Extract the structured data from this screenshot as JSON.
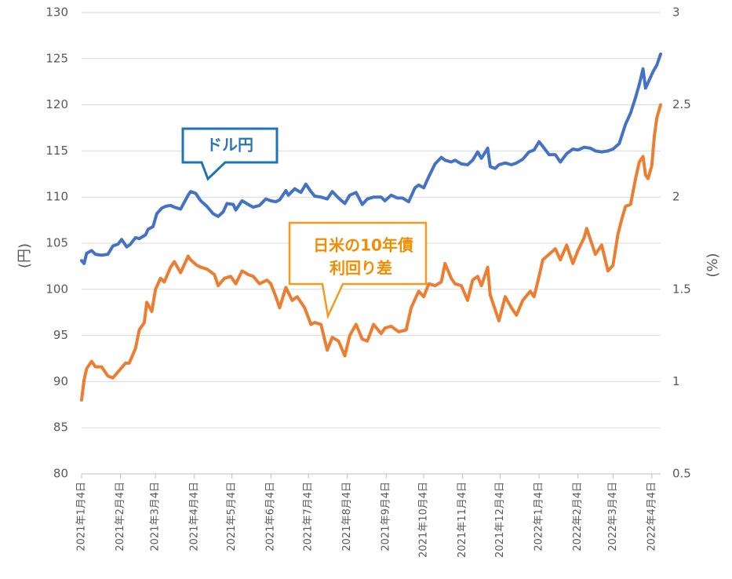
{
  "chart_data": {
    "type": "line",
    "y_left": {
      "label": "(円)",
      "min": 80,
      "max": 130,
      "ticks": [
        80,
        85,
        90,
        95,
        100,
        105,
        110,
        115,
        120,
        125,
        130
      ]
    },
    "y_right": {
      "label": "(%)",
      "min": 0.5,
      "max": 3,
      "ticks": [
        "0.5",
        "1",
        "1.5",
        "2",
        "2.5",
        "3"
      ]
    },
    "x_start": "2021-01-04",
    "x_end": "2022-04-11",
    "x_ticks": [
      {
        "date": "2021-01-04",
        "label": "2021年1月4日"
      },
      {
        "date": "2021-02-04",
        "label": "2021年2月4日"
      },
      {
        "date": "2021-03-04",
        "label": "2021年3月4日"
      },
      {
        "date": "2021-04-04",
        "label": "2021年4月4日"
      },
      {
        "date": "2021-05-04",
        "label": "2021年5月4日"
      },
      {
        "date": "2021-06-04",
        "label": "2021年6月4日"
      },
      {
        "date": "2021-07-04",
        "label": "2021年7月4日"
      },
      {
        "date": "2021-08-04",
        "label": "2021年8月4日"
      },
      {
        "date": "2021-09-04",
        "label": "2021年9月4日"
      },
      {
        "date": "2021-10-04",
        "label": "2021年10月4日"
      },
      {
        "date": "2021-11-04",
        "label": "2021年11月4日"
      },
      {
        "date": "2021-12-04",
        "label": "2021年12月4日"
      },
      {
        "date": "2022-01-04",
        "label": "2022年1月4日"
      },
      {
        "date": "2022-02-04",
        "label": "2022年2月4日"
      },
      {
        "date": "2022-03-04",
        "label": "2022年3月4日"
      },
      {
        "date": "2022-04-04",
        "label": "2022年4月4日"
      }
    ],
    "grid": true,
    "series": [
      {
        "name": "ドル円",
        "axis": "left",
        "color": "#4472C4",
        "points": [
          [
            "2021-01-04",
            103.1
          ],
          [
            "2021-01-06",
            102.8
          ],
          [
            "2021-01-08",
            103.9
          ],
          [
            "2021-01-12",
            104.2
          ],
          [
            "2021-01-15",
            103.8
          ],
          [
            "2021-01-20",
            103.7
          ],
          [
            "2021-01-25",
            103.8
          ],
          [
            "2021-01-29",
            104.7
          ],
          [
            "2021-02-02",
            104.9
          ],
          [
            "2021-02-05",
            105.4
          ],
          [
            "2021-02-09",
            104.6
          ],
          [
            "2021-02-12",
            104.9
          ],
          [
            "2021-02-16",
            105.6
          ],
          [
            "2021-02-19",
            105.5
          ],
          [
            "2021-02-24",
            105.9
          ],
          [
            "2021-02-26",
            106.5
          ],
          [
            "2021-03-02",
            106.8
          ],
          [
            "2021-03-05",
            108.2
          ],
          [
            "2021-03-09",
            108.8
          ],
          [
            "2021-03-12",
            109.0
          ],
          [
            "2021-03-16",
            109.1
          ],
          [
            "2021-03-19",
            108.9
          ],
          [
            "2021-03-24",
            108.7
          ],
          [
            "2021-03-30",
            110.2
          ],
          [
            "2021-04-01",
            110.6
          ],
          [
            "2021-04-05",
            110.4
          ],
          [
            "2021-04-09",
            109.6
          ],
          [
            "2021-04-14",
            109.0
          ],
          [
            "2021-04-19",
            108.2
          ],
          [
            "2021-04-23",
            107.9
          ],
          [
            "2021-04-27",
            108.4
          ],
          [
            "2021-04-30",
            109.3
          ],
          [
            "2021-05-05",
            109.2
          ],
          [
            "2021-05-07",
            108.6
          ],
          [
            "2021-05-12",
            109.6
          ],
          [
            "2021-05-17",
            109.2
          ],
          [
            "2021-05-21",
            108.9
          ],
          [
            "2021-05-26",
            109.1
          ],
          [
            "2021-05-31",
            109.8
          ],
          [
            "2021-06-04",
            109.6
          ],
          [
            "2021-06-08",
            109.5
          ],
          [
            "2021-06-11",
            109.7
          ],
          [
            "2021-06-16",
            110.7
          ],
          [
            "2021-06-18",
            110.2
          ],
          [
            "2021-06-23",
            110.9
          ],
          [
            "2021-06-28",
            110.5
          ],
          [
            "2021-07-02",
            111.4
          ],
          [
            "2021-07-06",
            110.6
          ],
          [
            "2021-07-09",
            110.1
          ],
          [
            "2021-07-14",
            110.0
          ],
          [
            "2021-07-19",
            109.8
          ],
          [
            "2021-07-23",
            110.6
          ],
          [
            "2021-07-28",
            109.9
          ],
          [
            "2021-08-02",
            109.3
          ],
          [
            "2021-08-06",
            110.2
          ],
          [
            "2021-08-11",
            110.5
          ],
          [
            "2021-08-16",
            109.2
          ],
          [
            "2021-08-20",
            109.8
          ],
          [
            "2021-08-25",
            110.0
          ],
          [
            "2021-08-31",
            110.0
          ],
          [
            "2021-09-03",
            109.6
          ],
          [
            "2021-09-08",
            110.2
          ],
          [
            "2021-09-13",
            109.9
          ],
          [
            "2021-09-17",
            109.9
          ],
          [
            "2021-09-22",
            109.5
          ],
          [
            "2021-09-27",
            111.0
          ],
          [
            "2021-09-30",
            111.3
          ],
          [
            "2021-10-04",
            111.0
          ],
          [
            "2021-10-08",
            112.2
          ],
          [
            "2021-10-13",
            113.6
          ],
          [
            "2021-10-18",
            114.3
          ],
          [
            "2021-10-21",
            114.0
          ],
          [
            "2021-10-26",
            113.8
          ],
          [
            "2021-10-29",
            114.0
          ],
          [
            "2021-11-03",
            113.6
          ],
          [
            "2021-11-08",
            113.5
          ],
          [
            "2021-11-12",
            114.0
          ],
          [
            "2021-11-16",
            114.9
          ],
          [
            "2021-11-19",
            114.2
          ],
          [
            "2021-11-24",
            115.3
          ],
          [
            "2021-11-26",
            113.3
          ],
          [
            "2021-11-30",
            113.1
          ],
          [
            "2021-12-03",
            113.5
          ],
          [
            "2021-12-08",
            113.7
          ],
          [
            "2021-12-13",
            113.5
          ],
          [
            "2021-12-17",
            113.7
          ],
          [
            "2021-12-22",
            114.1
          ],
          [
            "2021-12-27",
            114.9
          ],
          [
            "2021-12-31",
            115.1
          ],
          [
            "2022-01-04",
            116.0
          ],
          [
            "2022-01-07",
            115.5
          ],
          [
            "2022-01-12",
            114.6
          ],
          [
            "2022-01-17",
            114.6
          ],
          [
            "2022-01-21",
            113.8
          ],
          [
            "2022-01-26",
            114.7
          ],
          [
            "2022-01-31",
            115.2
          ],
          [
            "2022-02-04",
            115.1
          ],
          [
            "2022-02-09",
            115.4
          ],
          [
            "2022-02-14",
            115.3
          ],
          [
            "2022-02-18",
            115.0
          ],
          [
            "2022-02-23",
            114.9
          ],
          [
            "2022-02-28",
            115.0
          ],
          [
            "2022-03-04",
            115.2
          ],
          [
            "2022-03-09",
            115.8
          ],
          [
            "2022-03-14",
            117.9
          ],
          [
            "2022-03-18",
            119.1
          ],
          [
            "2022-03-22",
            120.8
          ],
          [
            "2022-03-25",
            122.2
          ],
          [
            "2022-03-28",
            123.9
          ],
          [
            "2022-03-30",
            121.8
          ],
          [
            "2022-04-01",
            122.4
          ],
          [
            "2022-04-05",
            123.6
          ],
          [
            "2022-04-08",
            124.3
          ],
          [
            "2022-04-11",
            125.5
          ]
        ]
      },
      {
        "name": "日米の10年債利回り差",
        "axis": "right",
        "color": "#ED7D31",
        "points": [
          [
            "2021-01-04",
            0.9
          ],
          [
            "2021-01-06",
            1.01
          ],
          [
            "2021-01-08",
            1.07
          ],
          [
            "2021-01-12",
            1.11
          ],
          [
            "2021-01-15",
            1.08
          ],
          [
            "2021-01-20",
            1.08
          ],
          [
            "2021-01-25",
            1.03
          ],
          [
            "2021-01-29",
            1.02
          ],
          [
            "2021-02-03",
            1.06
          ],
          [
            "2021-02-08",
            1.1
          ],
          [
            "2021-02-11",
            1.1
          ],
          [
            "2021-02-16",
            1.18
          ],
          [
            "2021-02-19",
            1.28
          ],
          [
            "2021-02-23",
            1.32
          ],
          [
            "2021-02-25",
            1.43
          ],
          [
            "2021-03-01",
            1.38
          ],
          [
            "2021-03-04",
            1.5
          ],
          [
            "2021-03-08",
            1.56
          ],
          [
            "2021-03-11",
            1.54
          ],
          [
            "2021-03-16",
            1.62
          ],
          [
            "2021-03-19",
            1.65
          ],
          [
            "2021-03-24",
            1.59
          ],
          [
            "2021-03-30",
            1.68
          ],
          [
            "2021-04-01",
            1.66
          ],
          [
            "2021-04-06",
            1.63
          ],
          [
            "2021-04-09",
            1.62
          ],
          [
            "2021-04-14",
            1.61
          ],
          [
            "2021-04-20",
            1.58
          ],
          [
            "2021-04-23",
            1.52
          ],
          [
            "2021-04-28",
            1.56
          ],
          [
            "2021-05-03",
            1.57
          ],
          [
            "2021-05-07",
            1.53
          ],
          [
            "2021-05-12",
            1.6
          ],
          [
            "2021-05-17",
            1.58
          ],
          [
            "2021-05-21",
            1.57
          ],
          [
            "2021-05-26",
            1.53
          ],
          [
            "2021-06-01",
            1.55
          ],
          [
            "2021-06-04",
            1.53
          ],
          [
            "2021-06-08",
            1.46
          ],
          [
            "2021-06-11",
            1.4
          ],
          [
            "2021-06-16",
            1.51
          ],
          [
            "2021-06-21",
            1.44
          ],
          [
            "2021-06-25",
            1.46
          ],
          [
            "2021-07-01",
            1.4
          ],
          [
            "2021-07-06",
            1.31
          ],
          [
            "2021-07-09",
            1.32
          ],
          [
            "2021-07-14",
            1.31
          ],
          [
            "2021-07-19",
            1.17
          ],
          [
            "2021-07-23",
            1.24
          ],
          [
            "2021-07-28",
            1.22
          ],
          [
            "2021-08-02",
            1.14
          ],
          [
            "2021-08-06",
            1.25
          ],
          [
            "2021-08-11",
            1.31
          ],
          [
            "2021-08-16",
            1.23
          ],
          [
            "2021-08-20",
            1.22
          ],
          [
            "2021-08-25",
            1.31
          ],
          [
            "2021-08-31",
            1.26
          ],
          [
            "2021-09-03",
            1.29
          ],
          [
            "2021-09-08",
            1.3
          ],
          [
            "2021-09-14",
            1.27
          ],
          [
            "2021-09-20",
            1.28
          ],
          [
            "2021-09-24",
            1.4
          ],
          [
            "2021-09-30",
            1.49
          ],
          [
            "2021-10-04",
            1.46
          ],
          [
            "2021-10-08",
            1.53
          ],
          [
            "2021-10-13",
            1.52
          ],
          [
            "2021-10-18",
            1.54
          ],
          [
            "2021-10-21",
            1.64
          ],
          [
            "2021-10-26",
            1.56
          ],
          [
            "2021-10-29",
            1.53
          ],
          [
            "2021-11-03",
            1.52
          ],
          [
            "2021-11-08",
            1.44
          ],
          [
            "2021-11-12",
            1.55
          ],
          [
            "2021-11-16",
            1.57
          ],
          [
            "2021-11-19",
            1.52
          ],
          [
            "2021-11-24",
            1.62
          ],
          [
            "2021-11-26",
            1.47
          ],
          [
            "2021-11-30",
            1.39
          ],
          [
            "2021-12-03",
            1.33
          ],
          [
            "2021-12-08",
            1.46
          ],
          [
            "2021-12-13",
            1.4
          ],
          [
            "2021-12-17",
            1.36
          ],
          [
            "2021-12-22",
            1.44
          ],
          [
            "2021-12-28",
            1.49
          ],
          [
            "2021-12-31",
            1.46
          ],
          [
            "2022-01-04",
            1.57
          ],
          [
            "2022-01-07",
            1.66
          ],
          [
            "2022-01-12",
            1.69
          ],
          [
            "2022-01-17",
            1.72
          ],
          [
            "2022-01-21",
            1.66
          ],
          [
            "2022-01-26",
            1.74
          ],
          [
            "2022-01-31",
            1.64
          ],
          [
            "2022-02-04",
            1.71
          ],
          [
            "2022-02-09",
            1.78
          ],
          [
            "2022-02-11",
            1.83
          ],
          [
            "2022-02-14",
            1.77
          ],
          [
            "2022-02-18",
            1.69
          ],
          [
            "2022-02-23",
            1.74
          ],
          [
            "2022-02-28",
            1.6
          ],
          [
            "2022-03-04",
            1.63
          ],
          [
            "2022-03-08",
            1.8
          ],
          [
            "2022-03-11",
            1.88
          ],
          [
            "2022-03-14",
            1.95
          ],
          [
            "2022-03-18",
            1.96
          ],
          [
            "2022-03-22",
            2.1
          ],
          [
            "2022-03-25",
            2.19
          ],
          [
            "2022-03-28",
            2.22
          ],
          [
            "2022-03-30",
            2.12
          ],
          [
            "2022-04-01",
            2.1
          ],
          [
            "2022-04-04",
            2.17
          ],
          [
            "2022-04-06",
            2.33
          ],
          [
            "2022-04-08",
            2.43
          ],
          [
            "2022-04-11",
            2.5
          ]
        ]
      }
    ],
    "callouts": [
      {
        "series": "ドル円",
        "text_lines": [
          "ドル円"
        ]
      },
      {
        "series": "日米の10年債利回り差",
        "text_lines": [
          "日米の10年債",
          "利回り差"
        ]
      }
    ]
  }
}
